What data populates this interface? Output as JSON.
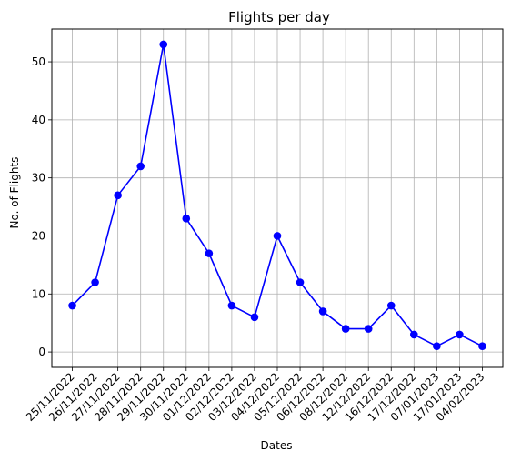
{
  "chart_data": {
    "type": "line",
    "title": "Flights per day",
    "xlabel": "Dates",
    "ylabel": "No. of Flights",
    "categories": [
      "25/11/2022",
      "26/11/2022",
      "27/11/2022",
      "28/11/2022",
      "29/11/2022",
      "30/11/2022",
      "01/12/2022",
      "02/12/2022",
      "03/12/2022",
      "04/12/2022",
      "05/12/2022",
      "06/12/2022",
      "08/12/2022",
      "12/12/2022",
      "16/12/2022",
      "17/12/2022",
      "07/01/2023",
      "17/01/2023",
      "04/02/2023"
    ],
    "series": [
      {
        "values": [
          8,
          12,
          27,
          32,
          53,
          23,
          17,
          8,
          6,
          20,
          12,
          7,
          4,
          4,
          8,
          3,
          1,
          3,
          1
        ],
        "color": "#0000ff",
        "marker": "circle"
      }
    ],
    "yticks": [
      0,
      10,
      20,
      30,
      40,
      50
    ],
    "ylim": [
      -2.65,
      55.65
    ],
    "grid": true,
    "grid_color": "#b0b0b0"
  }
}
